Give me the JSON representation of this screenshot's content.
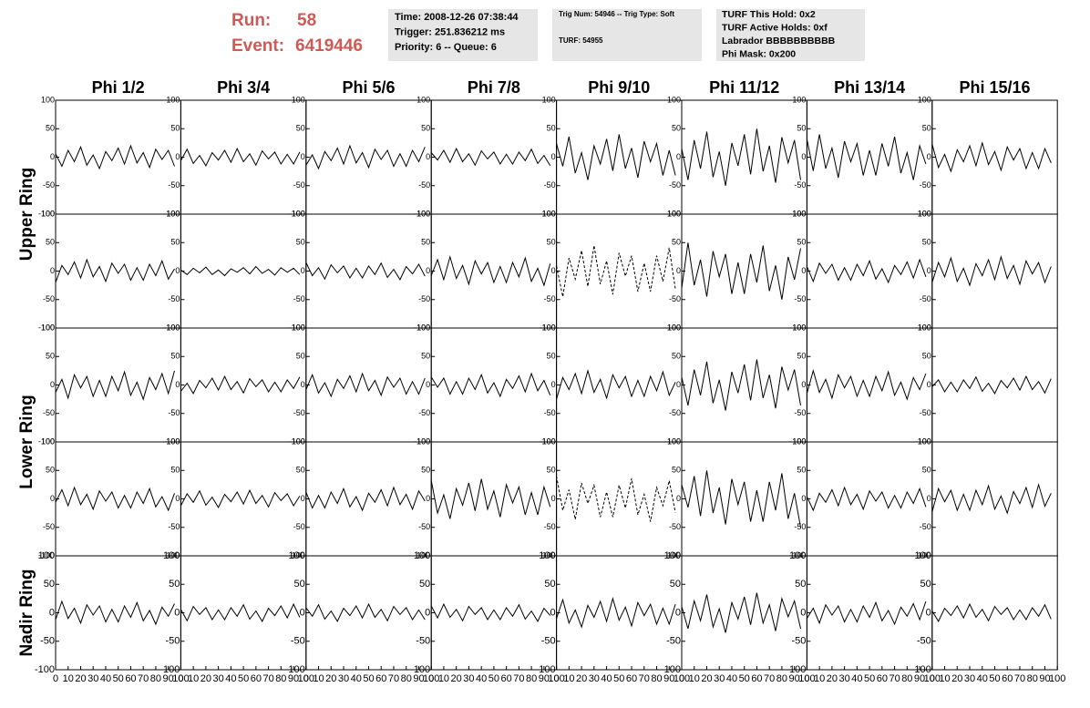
{
  "header": {
    "run_label": "Run:",
    "run": "58",
    "event_label": "Event:",
    "event": "6419446",
    "box1": [
      "Time: 2008-12-26 07:38:44",
      "Trigger: 251.836212 ms",
      "Priority: 6 -- Queue: 6"
    ],
    "box2": [
      "Trig Num: 54946 -- Trig Type: Soft",
      "TURF: 54955"
    ],
    "box3": [
      "TURF This Hold: 0x2",
      "TURF Active Holds: 0xf",
      "Labrador BBBBBBBBBB",
      "Phi Mask: 0x200"
    ]
  },
  "chart_data": {
    "type": "line",
    "color": "#000000",
    "columns": [
      "Phi 1/2",
      "Phi 3/4",
      "Phi 5/6",
      "Phi 7/8",
      "Phi 9/10",
      "Phi 11/12",
      "Phi 13/14",
      "Phi 15/16"
    ],
    "ring_labels": [
      "Upper Ring",
      "Lower Ring",
      "Nadir Ring"
    ],
    "xlim": [
      0,
      100
    ],
    "xticks": [
      0,
      10,
      20,
      30,
      40,
      50,
      60,
      70,
      80,
      90,
      100
    ],
    "ylim": [
      -100,
      100
    ],
    "yticks": [
      -100,
      -50,
      0,
      50,
      100
    ],
    "x": [
      0,
      5,
      10,
      15,
      20,
      25,
      30,
      35,
      40,
      45,
      50,
      55,
      60,
      65,
      70,
      75,
      80,
      85,
      90,
      95
    ],
    "panels": [
      [
        {
          "values": [
            6,
            -16,
            12,
            -8,
            18,
            -14,
            4,
            -20,
            10,
            -6,
            16,
            -12,
            20,
            -10,
            8,
            -18,
            14,
            -4,
            12,
            -16
          ]
        },
        {
          "values": [
            -6,
            14,
            -11,
            3,
            -15,
            8,
            -5,
            12,
            -9,
            15,
            -8,
            6,
            -14,
            11,
            -3,
            9,
            -12,
            5,
            -12,
            9
          ]
        },
        {
          "values": [
            -14,
            4,
            -20,
            10,
            -6,
            16,
            -12,
            20,
            -10,
            8,
            -18,
            14,
            -4,
            12,
            -16,
            6,
            -16,
            12,
            -8,
            18
          ]
        },
        {
          "values": [
            8,
            -5,
            12,
            -9,
            15,
            -8,
            6,
            -14,
            11,
            -3,
            9,
            -12,
            5,
            -12,
            9,
            -6,
            14,
            -11,
            3,
            -15
          ]
        },
        {
          "values": [
            24,
            -16,
            36,
            -28,
            8,
            -40,
            20,
            -12,
            32,
            -24,
            40,
            -20,
            16,
            -36,
            28,
            -8,
            24,
            -32,
            12,
            -32
          ]
        },
        {
          "values": [
            15,
            -40,
            30,
            -20,
            45,
            -35,
            10,
            -50,
            25,
            -15,
            40,
            -30,
            50,
            -25,
            20,
            -45,
            35,
            -10,
            30,
            -40
          ]
        },
        {
          "values": [
            32,
            -24,
            40,
            -20,
            16,
            -36,
            28,
            -8,
            24,
            -32,
            12,
            -32,
            24,
            -16,
            36,
            -28,
            8,
            -40,
            20,
            -12
          ]
        },
        {
          "values": [
            23,
            -18,
            5,
            -25,
            13,
            -8,
            20,
            -15,
            25,
            -13,
            10,
            -23,
            18,
            -5,
            15,
            -20,
            8,
            -20,
            15,
            -10
          ]
        }
      ],
      [
        {
          "values": [
            -20,
            10,
            -6,
            16,
            -12,
            20,
            -10,
            8,
            -18,
            14,
            -4,
            12,
            -16,
            6,
            -16,
            12,
            -8,
            18,
            -14,
            4
          ]
        },
        {
          "values": [
            2,
            -6,
            5,
            -3,
            7,
            -6,
            2,
            -8,
            4,
            -2,
            6,
            -5,
            8,
            -4,
            3,
            -7,
            6,
            -2,
            5,
            -6
          ]
        },
        {
          "values": [
            15,
            -8,
            6,
            -14,
            11,
            -3,
            9,
            -12,
            5,
            -12,
            9,
            -6,
            14,
            -11,
            3,
            -15,
            8,
            -5,
            12,
            -9
          ]
        },
        {
          "values": [
            -8,
            20,
            -15,
            25,
            -13,
            10,
            -23,
            18,
            -5,
            15,
            -20,
            8,
            -20,
            15,
            -10,
            23,
            -18,
            5,
            -25,
            13
          ]
        },
        {
          "values": [
            9,
            -45,
            23,
            -14,
            36,
            -27,
            45,
            -23,
            18,
            -41,
            32,
            -9,
            27,
            -36,
            14,
            -36,
            27,
            -18,
            41,
            -32
          ],
          "dashed": true
        },
        {
          "values": [
            -30,
            50,
            -25,
            20,
            -45,
            35,
            -10,
            30,
            -40,
            15,
            -40,
            30,
            -20,
            45,
            -35,
            10,
            -50,
            25,
            -15,
            40
          ]
        },
        {
          "values": [
            8,
            -18,
            14,
            -4,
            12,
            -16,
            6,
            -16,
            12,
            -8,
            18,
            -14,
            4,
            -20,
            10,
            -6,
            16,
            -12,
            20,
            -10
          ]
        },
        {
          "values": [
            -20,
            15,
            -10,
            23,
            -18,
            5,
            -25,
            13,
            -8,
            20,
            -15,
            25,
            -13,
            10,
            -23,
            18,
            -5,
            15,
            -20,
            8
          ]
        }
      ],
      [
        {
          "values": [
            -13,
            10,
            -23,
            18,
            -5,
            15,
            -20,
            8,
            -20,
            15,
            -10,
            23,
            -18,
            5,
            -25,
            13,
            -8,
            20,
            -15,
            25
          ]
        },
        {
          "values": [
            -11,
            3,
            -15,
            8,
            -5,
            12,
            -9,
            15,
            -8,
            6,
            -14,
            11,
            -3,
            9,
            -12,
            5,
            -12,
            9,
            -6,
            14
          ]
        },
        {
          "values": [
            -8,
            18,
            -14,
            4,
            -20,
            10,
            -6,
            16,
            -12,
            20,
            -10,
            8,
            -18,
            14,
            -4,
            12,
            -16,
            6,
            -16,
            12
          ]
        },
        {
          "values": [
            14,
            -4,
            12,
            -16,
            6,
            -16,
            12,
            -8,
            18,
            -14,
            4,
            -20,
            10,
            -6,
            16,
            -12,
            20,
            -10,
            8,
            -18
          ]
        },
        {
          "values": [
            -25,
            13,
            -8,
            20,
            -15,
            25,
            -13,
            10,
            -23,
            18,
            -5,
            15,
            -20,
            8,
            -20,
            15,
            -10,
            23,
            -18,
            5
          ]
        },
        {
          "values": [
            14,
            -36,
            27,
            -18,
            41,
            -32,
            9,
            -45,
            23,
            -14,
            36,
            -27,
            45,
            -23,
            18,
            -41,
            32,
            -9,
            27,
            -36
          ]
        },
        {
          "values": [
            -15,
            25,
            -13,
            10,
            -23,
            18,
            -5,
            15,
            -20,
            8,
            -20,
            15,
            -10,
            23,
            -18,
            5,
            -25,
            13,
            -8,
            20
          ]
        },
        {
          "values": [
            -3,
            9,
            -12,
            5,
            -12,
            9,
            -6,
            14,
            -11,
            3,
            -15,
            8,
            -5,
            12,
            -9,
            15,
            -8,
            6,
            -14,
            11
          ]
        }
      ],
      [
        {
          "values": [
            -6,
            16,
            -12,
            20,
            -10,
            8,
            -18,
            14,
            -4,
            12,
            -16,
            6,
            -16,
            12,
            -8,
            18,
            -14,
            4,
            -20,
            10
          ]
        },
        {
          "values": [
            -12,
            9,
            -6,
            14,
            -11,
            3,
            -15,
            8,
            -5,
            12,
            -9,
            15,
            -8,
            6,
            -14,
            11,
            -3,
            9,
            -12,
            5
          ]
        },
        {
          "values": [
            12,
            -16,
            6,
            -16,
            12,
            -8,
            18,
            -14,
            4,
            -20,
            10,
            -6,
            16,
            -12,
            20,
            -10,
            8,
            -18,
            14,
            -4
          ]
        },
        {
          "values": [
            32,
            -25,
            7,
            -35,
            18,
            -11,
            28,
            -21,
            35,
            -18,
            14,
            -32,
            25,
            -7,
            21,
            -28,
            11,
            -28,
            21,
            -14
          ]
        },
        {
          "values": [
            40,
            -20,
            16,
            -36,
            28,
            -8,
            24,
            -32,
            12,
            -32,
            24,
            -16,
            36,
            -28,
            8,
            -40,
            20,
            -12,
            32,
            -24
          ],
          "dashed": true
        },
        {
          "values": [
            25,
            -15,
            40,
            -30,
            50,
            -25,
            20,
            -45,
            35,
            -10,
            30,
            -40,
            15,
            -40,
            30,
            -20,
            45,
            -35,
            10,
            -50
          ]
        },
        {
          "values": [
            4,
            -20,
            10,
            -6,
            16,
            -12,
            20,
            -10,
            8,
            -18,
            14,
            -4,
            12,
            -16,
            6,
            -16,
            12,
            -8,
            18,
            -14
          ]
        },
        {
          "values": [
            -23,
            18,
            -5,
            15,
            -20,
            8,
            -20,
            15,
            -10,
            23,
            -18,
            5,
            -25,
            13,
            -8,
            20,
            -15,
            25,
            -13,
            10
          ]
        }
      ],
      [
        {
          "values": [
            -12,
            20,
            -10,
            8,
            -18,
            14,
            -4,
            12,
            -16,
            6,
            -16,
            12,
            -8,
            18,
            -14,
            4,
            -20,
            10,
            -6,
            16
          ]
        },
        {
          "values": [
            6,
            -14,
            11,
            -3,
            9,
            -12,
            5,
            -12,
            9,
            -6,
            14,
            -11,
            3,
            -15,
            8,
            -5,
            12,
            -9,
            15,
            -8
          ]
        },
        {
          "values": [
            9,
            -6,
            14,
            -11,
            3,
            -15,
            8,
            -5,
            12,
            -9,
            15,
            -8,
            6,
            -14,
            11,
            -3,
            9,
            -12,
            5,
            -12
          ]
        },
        {
          "values": [
            12,
            -9,
            15,
            -8,
            6,
            -14,
            11,
            -3,
            9,
            -12,
            5,
            -12,
            9,
            -6,
            14,
            -11,
            3,
            -15,
            8,
            -5
          ]
        },
        {
          "values": [
            -10,
            23,
            -18,
            5,
            -25,
            13,
            -8,
            20,
            -15,
            25,
            -13,
            10,
            -23,
            18,
            -5,
            15,
            -20,
            8,
            -20,
            15
          ]
        },
        {
          "values": [
            11,
            -28,
            21,
            -14,
            32,
            -25,
            7,
            -35,
            18,
            -11,
            28,
            -21,
            35,
            -18,
            14,
            -32,
            25,
            -7,
            21,
            -28
          ]
        },
        {
          "values": [
            -10,
            8,
            -18,
            14,
            -4,
            12,
            -16,
            6,
            -16,
            12,
            -8,
            18,
            -14,
            4,
            -20,
            10,
            -6,
            16,
            -12,
            20
          ]
        },
        {
          "values": [
            3,
            -15,
            8,
            -5,
            12,
            -9,
            15,
            -8,
            6,
            -14,
            11,
            -3,
            9,
            -12,
            5,
            -12,
            9,
            -6,
            14,
            -11
          ]
        }
      ]
    ]
  }
}
